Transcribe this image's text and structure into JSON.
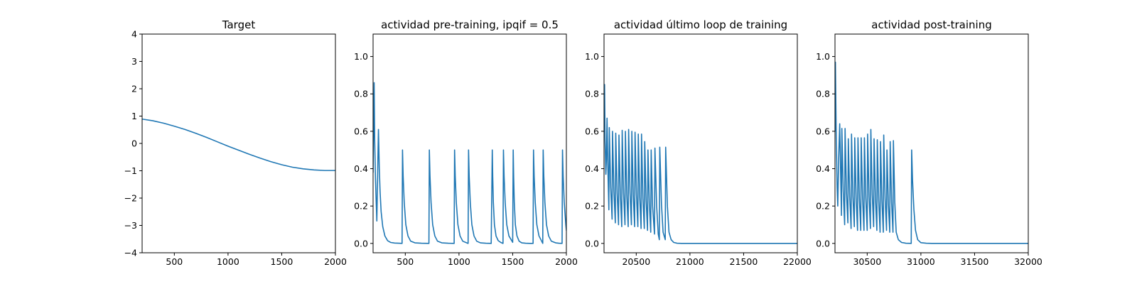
{
  "colors": {
    "line": "#1f77b4",
    "axes": "#000000",
    "background": "#ffffff"
  },
  "chart_data": [
    {
      "type": "line",
      "title": "Target",
      "xlabel": "",
      "ylabel": "",
      "xlim": [
        200,
        2000
      ],
      "ylim": [
        -4,
        4
      ],
      "x_ticks": [
        500,
        1000,
        1500,
        2000
      ],
      "y_ticks": [
        -4,
        -3,
        -2,
        -1,
        0,
        1,
        2,
        3,
        4
      ],
      "grid": false,
      "series": [
        {
          "x": [
            200,
            300,
            400,
            500,
            600,
            700,
            800,
            900,
            1000,
            1100,
            1200,
            1300,
            1400,
            1500,
            1600,
            1700,
            1800,
            1900,
            2000
          ],
          "y": [
            0.89,
            0.83,
            0.74,
            0.63,
            0.51,
            0.37,
            0.22,
            0.06,
            -0.1,
            -0.25,
            -0.4,
            -0.54,
            -0.67,
            -0.78,
            -0.87,
            -0.93,
            -0.97,
            -0.99,
            -0.99
          ]
        }
      ]
    },
    {
      "type": "line",
      "title": "actividad pre-training, ipqif = 0.5",
      "xlabel": "",
      "ylabel": "",
      "xlim": [
        200,
        2000
      ],
      "ylim": [
        -0.05,
        1.12
      ],
      "x_ticks": [
        500,
        1000,
        1500,
        2000
      ],
      "y_ticks": [
        0.0,
        0.2,
        0.4,
        0.6,
        0.8,
        1.0
      ],
      "y_tick_labels": [
        "0.0",
        "0.2",
        "0.4",
        "0.6",
        "0.8",
        "1.0"
      ],
      "grid": false,
      "series": [
        {
          "x": [
            200,
            210,
            215,
            222,
            228,
            235,
            245,
            250,
            258,
            265,
            275,
            290,
            310,
            335,
            365,
            400,
            440,
            470,
            474,
            480,
            490,
            505,
            525,
            550,
            590,
            650,
            720,
            724,
            730,
            740,
            755,
            775,
            800,
            840,
            900,
            955,
            959,
            965,
            975,
            990,
            1010,
            1035,
            1085,
            1089,
            1095,
            1105,
            1120,
            1140,
            1165,
            1200,
            1250,
            1300,
            1310,
            1314,
            1320,
            1330,
            1345,
            1365,
            1390,
            1410,
            1414,
            1420,
            1430,
            1445,
            1465,
            1500,
            1505,
            1509,
            1515,
            1525,
            1540,
            1560,
            1585,
            1620,
            1660,
            1690,
            1694,
            1700,
            1710,
            1725,
            1745,
            1770,
            1780,
            1784,
            1790,
            1800,
            1815,
            1835,
            1860,
            1900,
            1930,
            1960,
            1964,
            1970,
            1980,
            1995,
            2000
          ],
          "y": [
            0.38,
            0.86,
            0.55,
            0.35,
            0.24,
            0.12,
            0.45,
            0.61,
            0.4,
            0.28,
            0.17,
            0.09,
            0.04,
            0.015,
            0.005,
            0.002,
            0.001,
            0.0,
            0.5,
            0.36,
            0.22,
            0.1,
            0.04,
            0.012,
            0.003,
            0.001,
            0.0,
            0.5,
            0.36,
            0.22,
            0.1,
            0.04,
            0.012,
            0.003,
            0.001,
            0.0,
            0.5,
            0.36,
            0.22,
            0.1,
            0.04,
            0.012,
            0.0,
            0.5,
            0.36,
            0.22,
            0.1,
            0.04,
            0.012,
            0.003,
            0.001,
            0.0,
            0.5,
            0.36,
            0.22,
            0.1,
            0.04,
            0.015,
            0.005,
            0.0,
            0.5,
            0.36,
            0.22,
            0.1,
            0.04,
            0.006,
            0.5,
            0.36,
            0.22,
            0.1,
            0.04,
            0.012,
            0.003,
            0.001,
            0.0,
            0.0,
            0.5,
            0.36,
            0.22,
            0.1,
            0.04,
            0.012,
            0.0,
            0.5,
            0.36,
            0.22,
            0.1,
            0.04,
            0.012,
            0.003,
            0.001,
            0.0,
            0.5,
            0.36,
            0.22,
            0.1,
            0.07
          ]
        }
      ]
    },
    {
      "type": "line",
      "title": "actividad último loop de training",
      "xlabel": "",
      "ylabel": "",
      "xlim": [
        20200,
        22000
      ],
      "ylim": [
        -0.05,
        1.12
      ],
      "x_ticks": [
        20500,
        21000,
        21500,
        22000
      ],
      "y_ticks": [
        0.0,
        0.2,
        0.4,
        0.6,
        0.8,
        1.0
      ],
      "y_tick_labels": [
        "0.0",
        "0.2",
        "0.4",
        "0.6",
        "0.8",
        "1.0"
      ],
      "grid": false,
      "series": [
        {
          "x": [
            20200,
            20205,
            20210,
            20217,
            20222,
            20228,
            20234,
            20245,
            20249,
            20262,
            20275,
            20279,
            20292,
            20305,
            20309,
            20322,
            20335,
            20339,
            20352,
            20365,
            20369,
            20382,
            20395,
            20399,
            20412,
            20425,
            20429,
            20442,
            20455,
            20459,
            20472,
            20485,
            20489,
            20502,
            20515,
            20519,
            20532,
            20545,
            20549,
            20562,
            20575,
            20579,
            20592,
            20605,
            20609,
            20622,
            20635,
            20639,
            20652,
            20670,
            20674,
            20690,
            20705,
            20715,
            20719,
            20735,
            20750,
            20770,
            20774,
            20790,
            20805,
            20825,
            20850,
            20880,
            20920,
            20970,
            21050,
            22000
          ],
          "y": [
            0.65,
            0.85,
            0.55,
            0.37,
            0.45,
            0.67,
            0.45,
            0.18,
            0.62,
            0.3,
            0.13,
            0.6,
            0.28,
            0.11,
            0.59,
            0.27,
            0.1,
            0.58,
            0.26,
            0.09,
            0.605,
            0.27,
            0.1,
            0.6,
            0.26,
            0.09,
            0.61,
            0.27,
            0.1,
            0.6,
            0.26,
            0.09,
            0.595,
            0.26,
            0.09,
            0.585,
            0.25,
            0.08,
            0.585,
            0.24,
            0.08,
            0.545,
            0.23,
            0.07,
            0.5,
            0.21,
            0.06,
            0.5,
            0.2,
            0.05,
            0.51,
            0.2,
            0.05,
            0.02,
            0.515,
            0.21,
            0.06,
            0.02,
            0.515,
            0.2,
            0.06,
            0.02,
            0.005,
            0.001,
            0.0,
            0.0,
            0.0,
            0.0
          ]
        }
      ]
    },
    {
      "type": "line",
      "title": "actividad post-training",
      "xlabel": "",
      "ylabel": "",
      "xlim": [
        30200,
        32000
      ],
      "ylim": [
        -0.05,
        1.12
      ],
      "x_ticks": [
        30500,
        31000,
        31500,
        32000
      ],
      "y_ticks": [
        0.0,
        0.2,
        0.4,
        0.6,
        0.8,
        1.0
      ],
      "y_tick_labels": [
        "0.0",
        "0.2",
        "0.4",
        "0.6",
        "0.8",
        "1.0"
      ],
      "grid": false,
      "series": [
        {
          "x": [
            30200,
            30204,
            30212,
            30220,
            30226,
            30234,
            30244,
            30260,
            30264,
            30277,
            30290,
            30294,
            30307,
            30320,
            30324,
            30337,
            30350,
            30354,
            30367,
            30380,
            30384,
            30397,
            30410,
            30414,
            30427,
            30440,
            30444,
            30457,
            30470,
            30474,
            30487,
            30500,
            30504,
            30517,
            30530,
            30534,
            30547,
            30560,
            30564,
            30577,
            30590,
            30594,
            30607,
            30620,
            30624,
            30637,
            30650,
            30654,
            30667,
            30680,
            30684,
            30697,
            30710,
            30714,
            30727,
            30740,
            30744,
            30757,
            30770,
            30790,
            30820,
            30860,
            30910,
            30914,
            30922,
            30935,
            30950,
            30970,
            31000,
            31050,
            31100,
            32000
          ],
          "y": [
            0.6,
            0.97,
            0.55,
            0.3,
            0.2,
            0.45,
            0.64,
            0.15,
            0.615,
            0.28,
            0.1,
            0.615,
            0.27,
            0.11,
            0.56,
            0.25,
            0.08,
            0.585,
            0.25,
            0.09,
            0.565,
            0.24,
            0.07,
            0.565,
            0.24,
            0.07,
            0.565,
            0.24,
            0.07,
            0.565,
            0.24,
            0.07,
            0.585,
            0.25,
            0.08,
            0.61,
            0.26,
            0.09,
            0.56,
            0.24,
            0.07,
            0.555,
            0.23,
            0.06,
            0.545,
            0.23,
            0.06,
            0.58,
            0.24,
            0.07,
            0.5,
            0.21,
            0.06,
            0.545,
            0.22,
            0.06,
            0.55,
            0.22,
            0.06,
            0.02,
            0.005,
            0.001,
            0.0,
            0.5,
            0.34,
            0.18,
            0.07,
            0.02,
            0.004,
            0.001,
            0.0,
            0.0
          ]
        }
      ]
    }
  ]
}
